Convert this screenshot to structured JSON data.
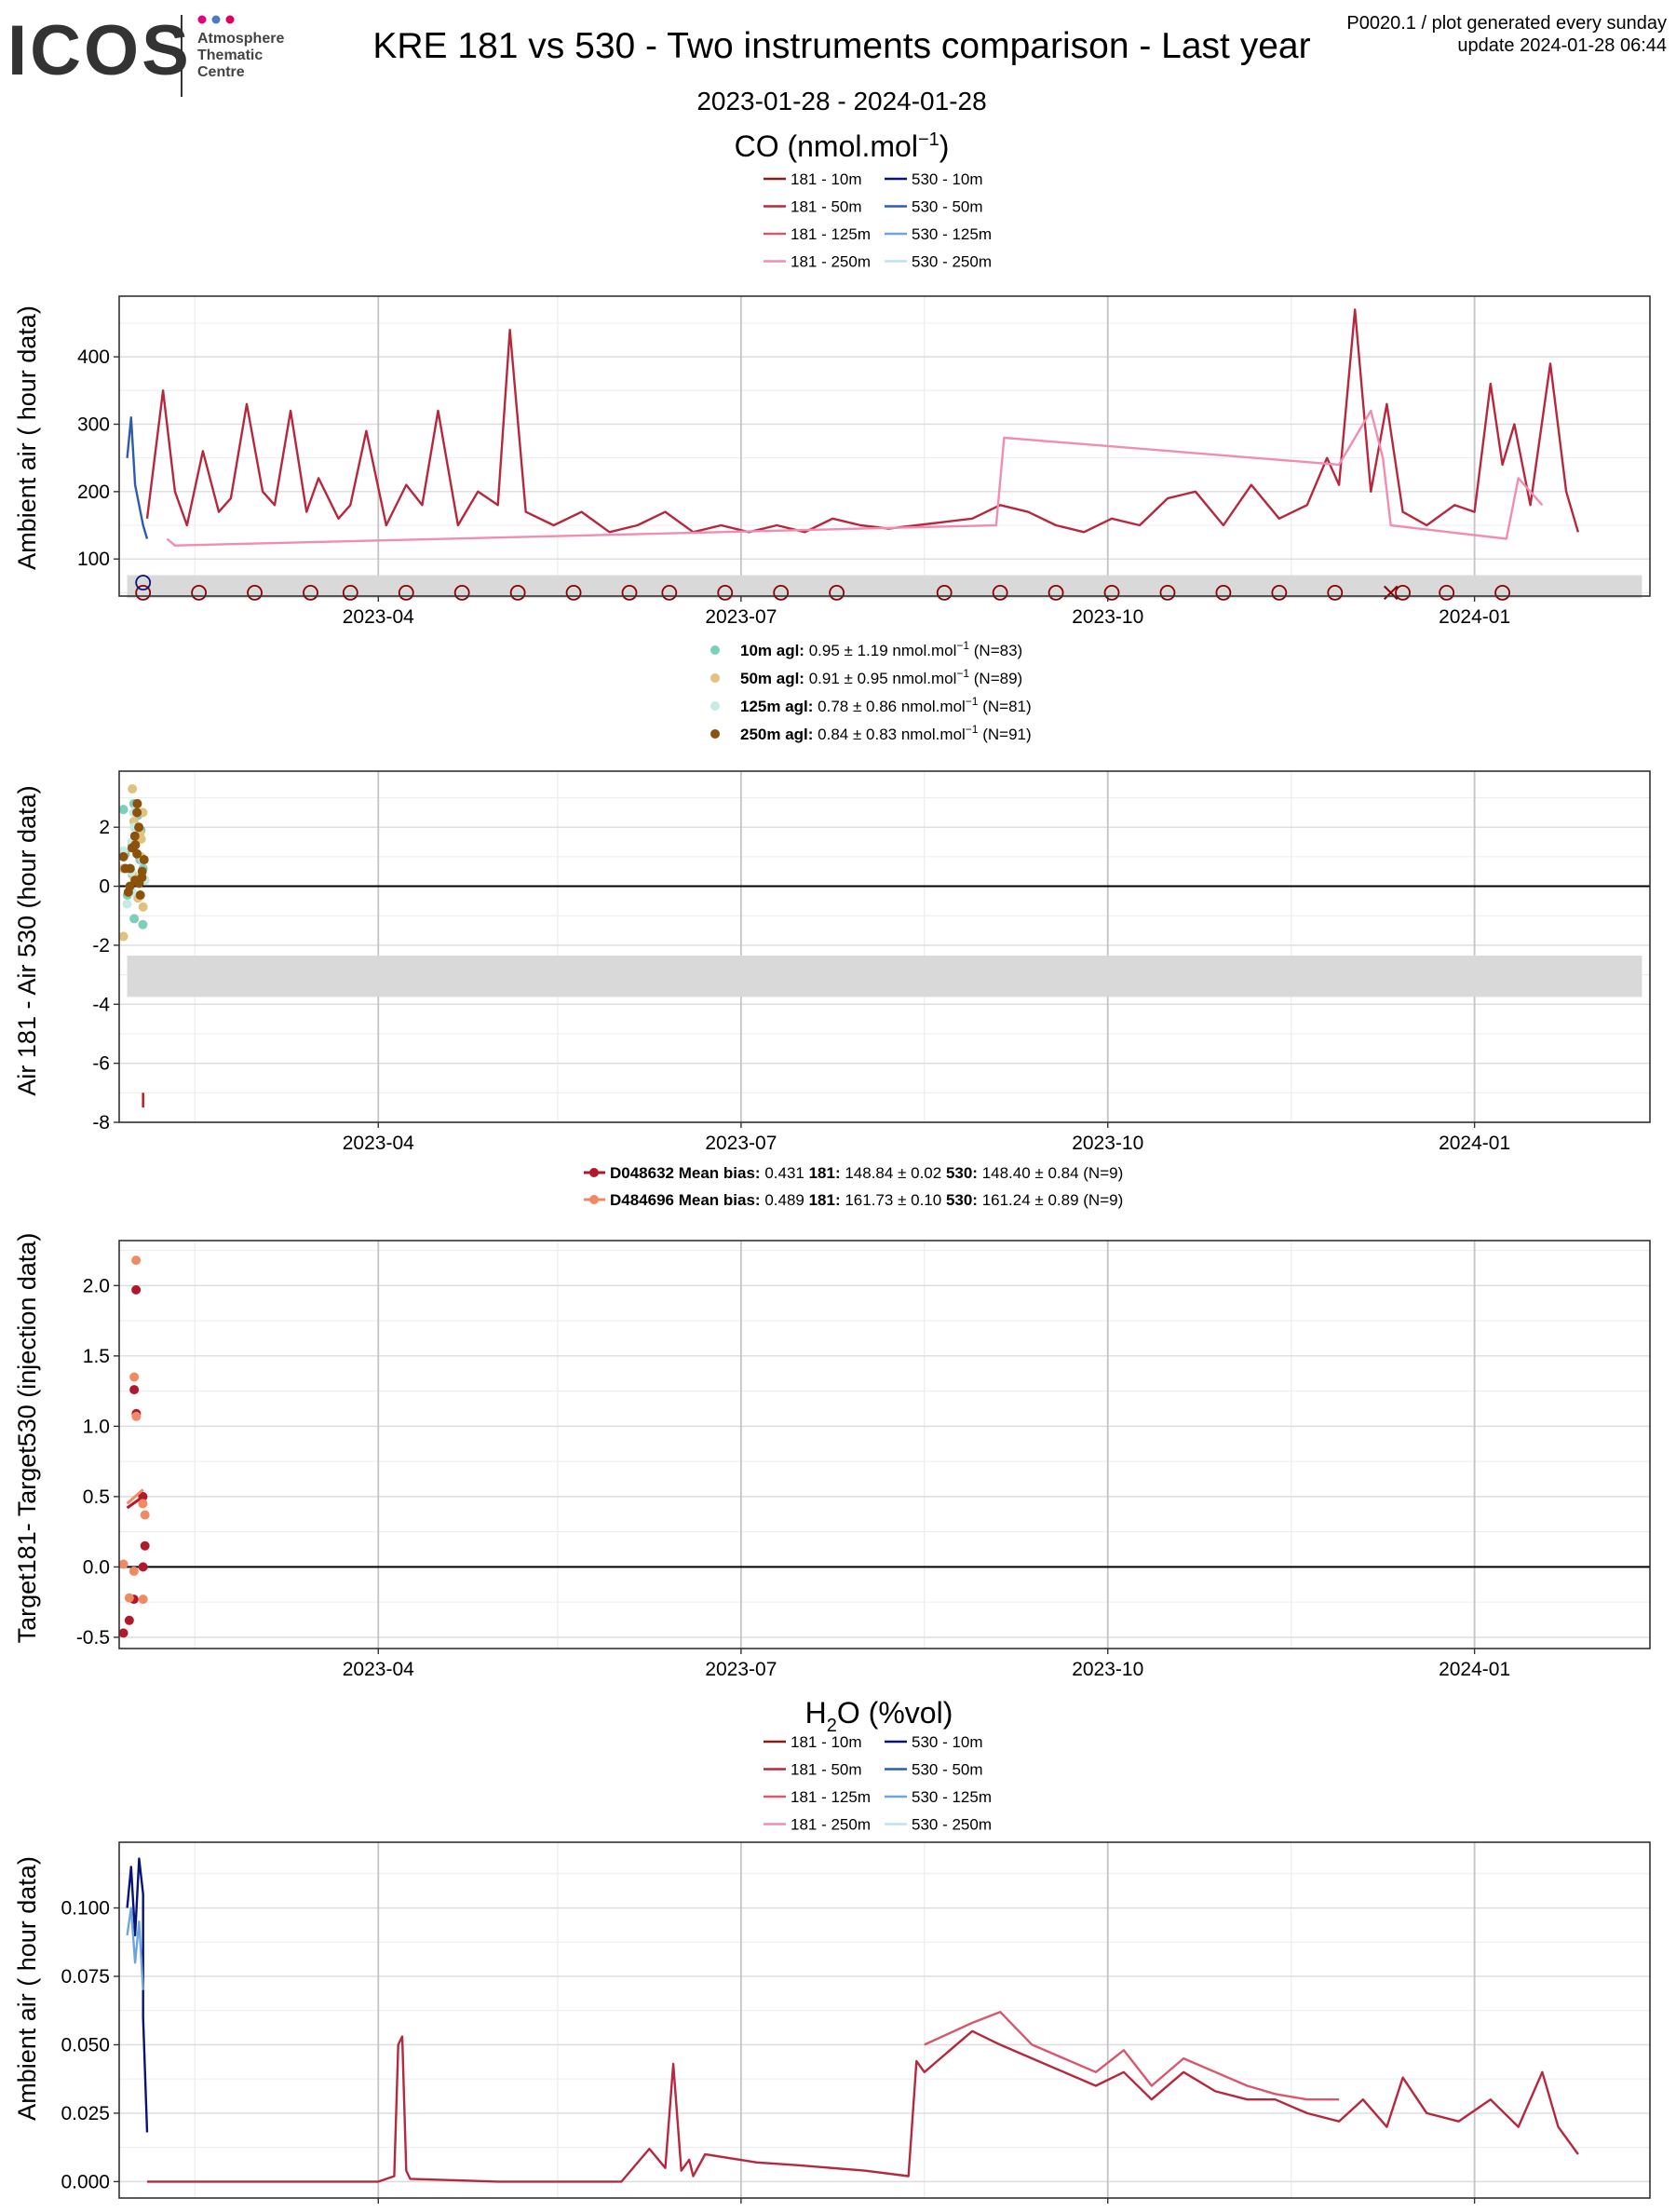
{
  "header": {
    "logo_text": "ICOS",
    "logo_sub": [
      "Atmosphere",
      "Thematic",
      "Centre"
    ],
    "logo_dot_colors": [
      "#e6007e",
      "#4a7cc2",
      "#e3005b"
    ],
    "title": "KRE 181 vs 530 - Two instruments comparison - Last year",
    "date_range": "2023-01-28 - 2024-01-28",
    "info_line1": "P0020.1 / plot generated every sunday",
    "info_line2": "update  2024-01-28 06:44"
  },
  "xaxis": {
    "range": [
      "2023-01-26",
      "2024-02-14"
    ],
    "ticks": [
      {
        "date": "2023-04-01",
        "label": "2023-04"
      },
      {
        "date": "2023-07-01",
        "label": "2023-07"
      },
      {
        "date": "2023-10-01",
        "label": "2023-10"
      },
      {
        "date": "2024-01-01",
        "label": "2024-01"
      }
    ],
    "minor_ticks": [
      "2023-02-14",
      "2023-05-16",
      "2023-08-16",
      "2023-11-16"
    ]
  },
  "chart_data": [
    {
      "id": "co_ambient",
      "type": "line",
      "section_title_pre": "CO (nmol.mol",
      "section_title_sup": "−1",
      "section_title_post": ")",
      "ylabel": "Ambient air ( hour data)",
      "ylim": [
        45,
        490
      ],
      "yticks": [
        100,
        200,
        300,
        400
      ],
      "legend": [
        {
          "name": "181 - 10m",
          "color": "#8b1a1a"
        },
        {
          "name": "530 - 10m",
          "color": "#08137a"
        },
        {
          "name": "181 - 50m",
          "color": "#b5283e"
        },
        {
          "name": "530 - 50m",
          "color": "#2d5bb0"
        },
        {
          "name": "181 - 125m",
          "color": "#d7576f"
        },
        {
          "name": "530 - 125m",
          "color": "#6fa5dc"
        },
        {
          "name": "181 - 250m",
          "color": "#f28cb1"
        },
        {
          "name": "530 - 250m",
          "color": "#b9e3f7"
        }
      ],
      "band": [
        42,
        76
      ],
      "markers": {
        "y": 50,
        "dates": [
          "2023-02-01",
          "2023-02-15",
          "2023-03-01",
          "2023-03-15",
          "2023-03-25",
          "2023-04-08",
          "2023-04-22",
          "2023-05-06",
          "2023-05-20",
          "2023-06-03",
          "2023-06-13",
          "2023-06-27",
          "2023-07-11",
          "2023-07-25",
          "2023-08-21",
          "2023-09-04",
          "2023-09-18",
          "2023-10-02",
          "2023-10-16",
          "2023-10-30",
          "2023-11-13",
          "2023-11-27",
          "2023-12-14",
          "2023-12-25",
          "2024-01-08"
        ],
        "cross_dates": [
          "2023-12-11"
        ],
        "blue_marker": {
          "date": "2023-02-01",
          "y": 65
        }
      },
      "series": [
        {
          "name": "530 - 50m",
          "color": "#2d5bb0",
          "x": [
            "2023-01-28",
            "2023-01-29",
            "2023-01-30",
            "2023-01-31",
            "2023-02-01",
            "2023-02-02"
          ],
          "y": [
            250,
            310,
            210,
            180,
            150,
            130
          ]
        },
        {
          "name": "181 - 50m",
          "color": "#b5283e",
          "x": [
            "2023-02-02",
            "2023-02-06",
            "2023-02-09",
            "2023-02-12",
            "2023-02-16",
            "2023-02-20",
            "2023-02-23",
            "2023-02-27",
            "2023-03-03",
            "2023-03-06",
            "2023-03-10",
            "2023-03-14",
            "2023-03-17",
            "2023-03-22",
            "2023-03-25",
            "2023-03-29",
            "2023-04-03",
            "2023-04-08",
            "2023-04-12",
            "2023-04-16",
            "2023-04-21",
            "2023-04-26",
            "2023-05-01",
            "2023-05-04",
            "2023-05-08",
            "2023-05-15",
            "2023-05-22",
            "2023-05-29",
            "2023-06-05",
            "2023-06-12",
            "2023-06-19",
            "2023-06-26",
            "2023-07-03",
            "2023-07-10",
            "2023-07-17",
            "2023-07-24",
            "2023-07-31",
            "2023-08-07",
            "2023-08-14",
            "2023-08-21",
            "2023-08-28",
            "2023-09-04",
            "2023-09-11",
            "2023-09-18",
            "2023-09-25",
            "2023-10-02",
            "2023-10-09",
            "2023-10-16",
            "2023-10-23",
            "2023-10-30",
            "2023-11-06",
            "2023-11-13",
            "2023-11-20",
            "2023-11-25",
            "2023-11-28",
            "2023-12-02",
            "2023-12-06",
            "2023-12-10",
            "2023-12-14",
            "2023-12-20",
            "2023-12-27",
            "2024-01-01",
            "2024-01-05",
            "2024-01-08",
            "2024-01-11",
            "2024-01-15",
            "2024-01-20",
            "2024-01-24",
            "2024-01-27"
          ],
          "y": [
            160,
            350,
            200,
            150,
            260,
            170,
            190,
            330,
            200,
            180,
            320,
            170,
            220,
            160,
            180,
            290,
            150,
            210,
            180,
            320,
            150,
            200,
            180,
            440,
            170,
            150,
            170,
            140,
            150,
            170,
            140,
            150,
            140,
            150,
            140,
            160,
            150,
            145,
            150,
            155,
            160,
            180,
            170,
            150,
            140,
            160,
            150,
            190,
            200,
            150,
            210,
            160,
            180,
            250,
            210,
            470,
            200,
            330,
            170,
            150,
            180,
            170,
            360,
            240,
            300,
            180,
            390,
            200,
            140
          ]
        },
        {
          "name": "181 - 250m",
          "color": "#f28cb1",
          "x": [
            "2023-02-07",
            "2023-02-09",
            "2023-09-03",
            "2023-09-05",
            "2023-11-28",
            "2023-12-02",
            "2023-12-06",
            "2023-12-09",
            "2023-12-11",
            "2024-01-09",
            "2024-01-12",
            "2024-01-18"
          ],
          "y": [
            130,
            120,
            150,
            280,
            240,
            280,
            320,
            250,
            150,
            130,
            220,
            180
          ]
        }
      ]
    },
    {
      "id": "co_diff",
      "type": "scatter",
      "ylabel": "Air 181 - Air 530 (hour data)",
      "ylim": [
        -8,
        3.9
      ],
      "yticks": [
        -8,
        -6,
        -4,
        -2,
        0,
        2
      ],
      "zero_line": 0,
      "band": [
        -3.75,
        -2.35
      ],
      "legend": [
        {
          "label": "10m agl:",
          "text": " 0.95 ± 1.19 nmol.mol",
          "sup": "−1",
          "n": "(N=83)",
          "color": "#7fcdbb"
        },
        {
          "label": "50m agl:",
          "text": " 0.91 ± 0.95 nmol.mol",
          "sup": "−1",
          "n": "(N=89)",
          "color": "#dfc27d"
        },
        {
          "label": "125m agl:",
          "text": " 0.78 ± 0.86 nmol.mol",
          "sup": "−1",
          "n": "(N=81)",
          "color": "#c7eae5"
        },
        {
          "label": "250m agl:",
          "text": " 0.84 ± 0.83 nmol.mol",
          "sup": "−1",
          "n": "(N=91)",
          "color": "#8c510a"
        }
      ],
      "outlier_tick": {
        "date": "2023-02-01",
        "y": [
          -7.5,
          -7.0
        ],
        "color": "#b22222"
      },
      "series": [
        {
          "name": "10m agl",
          "color": "#7fcdbb",
          "x": [
            "2023-01-28",
            "2023-01-29",
            "2023-01-29",
            "2023-01-30",
            "2023-01-30",
            "2023-01-31",
            "2023-01-31",
            "2023-02-01",
            "2023-01-28",
            "2023-01-29",
            "2023-01-30",
            "2023-01-31"
          ],
          "y": [
            2.6,
            2.8,
            1.5,
            -1.1,
            0.4,
            -1.3,
            1.9,
            0.6,
            1.1,
            -0.3,
            2.4,
            0.9
          ]
        },
        {
          "name": "50m agl",
          "color": "#dfc27d",
          "x": [
            "2023-01-28",
            "2023-01-29",
            "2023-01-29",
            "2023-01-30",
            "2023-01-30",
            "2023-01-31",
            "2023-01-31",
            "2023-02-01",
            "2023-02-01",
            "2023-01-28",
            "2023-01-30",
            "2023-01-31"
          ],
          "y": [
            -1.7,
            2.2,
            1.4,
            0.3,
            3.3,
            2.5,
            1.0,
            -0.7,
            1.6,
            0.6,
            -0.4,
            1.8
          ]
        },
        {
          "name": "125m agl",
          "color": "#c7eae5",
          "x": [
            "2023-01-28",
            "2023-01-29",
            "2023-01-29",
            "2023-01-30",
            "2023-01-30",
            "2023-01-31",
            "2023-02-01",
            "2023-01-28",
            "2023-01-31",
            "2023-01-30"
          ],
          "y": [
            1.2,
            2.5,
            -0.2,
            2.0,
            1.5,
            0.9,
            0.2,
            -0.6,
            2.7,
            0.5
          ]
        },
        {
          "name": "250m agl",
          "color": "#8c510a",
          "x": [
            "2023-01-28",
            "2023-01-28",
            "2023-01-29",
            "2023-01-29",
            "2023-01-29",
            "2023-01-30",
            "2023-01-30",
            "2023-01-30",
            "2023-01-31",
            "2023-01-31",
            "2023-01-31",
            "2023-02-01",
            "2023-02-01",
            "2023-02-01",
            "2023-01-29",
            "2023-01-30",
            "2023-01-31",
            "2023-01-28"
          ],
          "y": [
            1.0,
            0.0,
            1.3,
            0.6,
            -0.2,
            2.0,
            1.1,
            0.2,
            2.8,
            1.4,
            0.3,
            0.9,
            0.5,
            -0.3,
            1.7,
            2.5,
            0.1,
            0.6
          ]
        }
      ]
    },
    {
      "id": "co_target",
      "type": "scatter",
      "ylabel": "Target181- Target530 (injection data)",
      "ylim": [
        -0.58,
        2.32
      ],
      "yticks": [
        -0.5,
        0.0,
        0.5,
        1.0,
        1.5,
        2.0
      ],
      "ytick_labels": [
        "-0.5",
        "0.0",
        "0.5",
        "1.0",
        "1.5",
        "2.0"
      ],
      "zero_line": 0,
      "legend": [
        {
          "name": "D048632",
          "text": "Mean bias:",
          "bias": " 0.431  ",
          "v181": " 148.84 ± 0.02  ",
          "v530": " 148.40 ± 0.84 (N=9)",
          "color": "#b2182b"
        },
        {
          "name": "D484696",
          "text": "Mean bias:",
          "bias": " 0.489  ",
          "v181": " 161.73 ± 0.10  ",
          "v530": " 161.24 ± 0.89 (N=9)",
          "color": "#ef8a62"
        }
      ],
      "series": [
        {
          "name": "D048632",
          "color": "#b2182b",
          "x": [
            "2023-01-28",
            "2023-01-29",
            "2023-01-30",
            "2023-01-30",
            "2023-01-31",
            "2023-01-31",
            "2023-02-01",
            "2023-02-01",
            "2023-01-29"
          ],
          "y": [
            -0.47,
            -0.23,
            1.97,
            1.26,
            1.09,
            0.5,
            0.15,
            0.0,
            -0.38
          ],
          "fit": {
            "x": [
              "2023-01-28",
              "2023-02-01"
            ],
            "y": [
              0.42,
              0.5
            ]
          }
        },
        {
          "name": "D484696",
          "color": "#ef8a62",
          "x": [
            "2023-01-28",
            "2023-01-29",
            "2023-01-30",
            "2023-01-30",
            "2023-01-31",
            "2023-01-31",
            "2023-02-01",
            "2023-02-01",
            "2023-01-29"
          ],
          "y": [
            0.02,
            -0.03,
            2.18,
            1.35,
            1.07,
            0.45,
            0.37,
            -0.23,
            -0.22
          ],
          "fit": {
            "x": [
              "2023-01-28",
              "2023-02-01"
            ],
            "y": [
              0.45,
              0.55
            ]
          }
        }
      ]
    },
    {
      "id": "h2o_ambient",
      "type": "line",
      "section_title_pre": "H",
      "section_title_sub": "2",
      "section_title_post": "O (%vol)",
      "ylabel": "Ambient air ( hour data)",
      "ylim": [
        -0.006,
        0.124
      ],
      "yticks": [
        0.0,
        0.025,
        0.05,
        0.075,
        0.1
      ],
      "ytick_labels": [
        "0.000",
        "0.025",
        "0.050",
        "0.075",
        "0.100"
      ],
      "legend": [
        {
          "name": "181 - 10m",
          "color": "#8b1a1a"
        },
        {
          "name": "530 - 10m",
          "color": "#08137a"
        },
        {
          "name": "181 - 50m",
          "color": "#b5283e"
        },
        {
          "name": "530 - 50m",
          "color": "#2d5bb0"
        },
        {
          "name": "181 - 125m",
          "color": "#d7576f"
        },
        {
          "name": "530 - 125m",
          "color": "#6fa5dc"
        },
        {
          "name": "181 - 250m",
          "color": "#f28cb1"
        },
        {
          "name": "530 - 250m",
          "color": "#b9e3f7"
        }
      ],
      "series": [
        {
          "name": "530 - 10m",
          "color": "#08137a",
          "x": [
            "2023-01-28",
            "2023-01-29",
            "2023-01-30",
            "2023-01-31",
            "2023-02-01",
            "2023-02-01",
            "2023-02-02"
          ],
          "y": [
            0.1,
            0.115,
            0.09,
            0.118,
            0.105,
            0.06,
            0.018
          ]
        },
        {
          "name": "530 - 125m",
          "color": "#6fa5dc",
          "x": [
            "2023-01-28",
            "2023-01-29",
            "2023-01-30",
            "2023-01-31",
            "2023-02-01"
          ],
          "y": [
            0.09,
            0.1,
            0.08,
            0.095,
            0.07
          ]
        },
        {
          "name": "181 - 50m",
          "color": "#b5283e",
          "x": [
            "2023-02-02",
            "2023-03-15",
            "2023-04-01",
            "2023-04-05",
            "2023-04-06",
            "2023-04-07",
            "2023-04-08",
            "2023-04-09",
            "2023-05-01",
            "2023-05-03",
            "2023-05-10",
            "2023-06-01",
            "2023-06-08",
            "2023-06-12",
            "2023-06-14",
            "2023-06-16",
            "2023-06-18",
            "2023-06-19",
            "2023-06-22",
            "2023-07-05",
            "2023-07-15",
            "2023-08-01",
            "2023-08-12",
            "2023-08-14",
            "2023-08-16",
            "2023-08-20",
            "2023-08-28",
            "2023-09-04",
            "2023-09-12",
            "2023-09-20",
            "2023-09-28",
            "2023-10-05",
            "2023-10-12",
            "2023-10-20",
            "2023-10-28",
            "2023-11-05",
            "2023-11-12",
            "2023-11-20",
            "2023-11-28",
            "2023-12-04",
            "2023-12-10",
            "2023-12-14",
            "2023-12-20",
            "2023-12-28",
            "2024-01-05",
            "2024-01-12",
            "2024-01-18",
            "2024-01-22",
            "2024-01-27"
          ],
          "y": [
            0.0,
            0.0,
            0.0,
            0.002,
            0.05,
            0.053,
            0.004,
            0.001,
            0.0,
            0.0,
            0.0,
            0.0,
            0.012,
            0.005,
            0.043,
            0.004,
            0.008,
            0.002,
            0.01,
            0.007,
            0.006,
            0.004,
            0.002,
            0.044,
            0.04,
            0.045,
            0.055,
            0.05,
            0.045,
            0.04,
            0.035,
            0.04,
            0.03,
            0.04,
            0.033,
            0.03,
            0.03,
            0.025,
            0.022,
            0.03,
            0.02,
            0.038,
            0.025,
            0.022,
            0.03,
            0.02,
            0.04,
            0.02,
            0.01
          ]
        },
        {
          "name": "181 - 125m",
          "color": "#d7576f",
          "x": [
            "2023-08-16",
            "2023-08-28",
            "2023-09-04",
            "2023-09-12",
            "2023-09-20",
            "2023-09-28",
            "2023-10-05",
            "2023-10-12",
            "2023-10-20",
            "2023-10-28",
            "2023-11-05",
            "2023-11-12",
            "2023-11-20",
            "2023-11-28"
          ],
          "y": [
            0.05,
            0.058,
            0.062,
            0.05,
            0.045,
            0.04,
            0.048,
            0.035,
            0.045,
            0.04,
            0.035,
            0.032,
            0.03,
            0.03
          ]
        }
      ]
    }
  ]
}
